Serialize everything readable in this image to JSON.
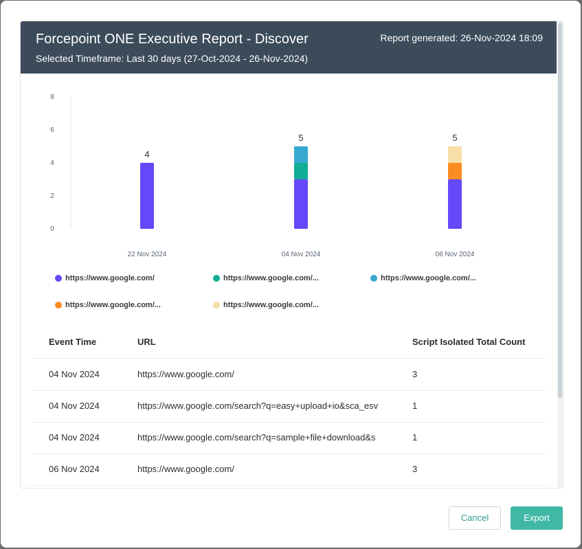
{
  "header": {
    "title": "Forcepoint ONE Executive Report - Discover",
    "timeframe": "Selected Timeframe: Last 30 days (27-Oct-2024 - 26-Nov-2024)",
    "generated": "Report generated: 26-Nov-2024 18:09"
  },
  "chart_data": {
    "type": "bar",
    "stacked": true,
    "categories": [
      "22 Nov 2024",
      "04 Nov 2024",
      "06 Nov 2024"
    ],
    "ylim": [
      0,
      8
    ],
    "yticks": [
      0,
      2,
      4,
      6,
      8
    ],
    "totals": [
      "4",
      "5",
      "5"
    ],
    "series": [
      {
        "name": "https://www.google.com/",
        "color": "#6647f9",
        "values": [
          4,
          3,
          3
        ]
      },
      {
        "name": "https://www.google.com/...",
        "color": "#10ad97",
        "values": [
          0,
          1,
          0
        ]
      },
      {
        "name": "https://www.google.com/...",
        "color": "#37a9d1",
        "values": [
          0,
          1,
          0
        ]
      },
      {
        "name": "https://www.google.com/...",
        "color": "#fb8c22",
        "values": [
          0,
          0,
          1
        ]
      },
      {
        "name": "https://www.google.com/...",
        "color": "#f7dfa6",
        "values": [
          0,
          0,
          1
        ]
      }
    ],
    "grid": false,
    "legend": "bottom"
  },
  "table": {
    "headers": [
      "Event Time",
      "URL",
      "Script Isolated Total Count"
    ],
    "rows": [
      [
        "04 Nov 2024",
        "https://www.google.com/",
        "3"
      ],
      [
        "04 Nov 2024",
        "https://www.google.com/search?q=easy+upload+io&sca_esv",
        "1"
      ],
      [
        "04 Nov 2024",
        "https://www.google.com/search?q=sample+file+download&s",
        "1"
      ],
      [
        "06 Nov 2024",
        "https://www.google.com/",
        "3"
      ]
    ]
  },
  "buttons": {
    "cancel": "Cancel",
    "export": "Export"
  }
}
